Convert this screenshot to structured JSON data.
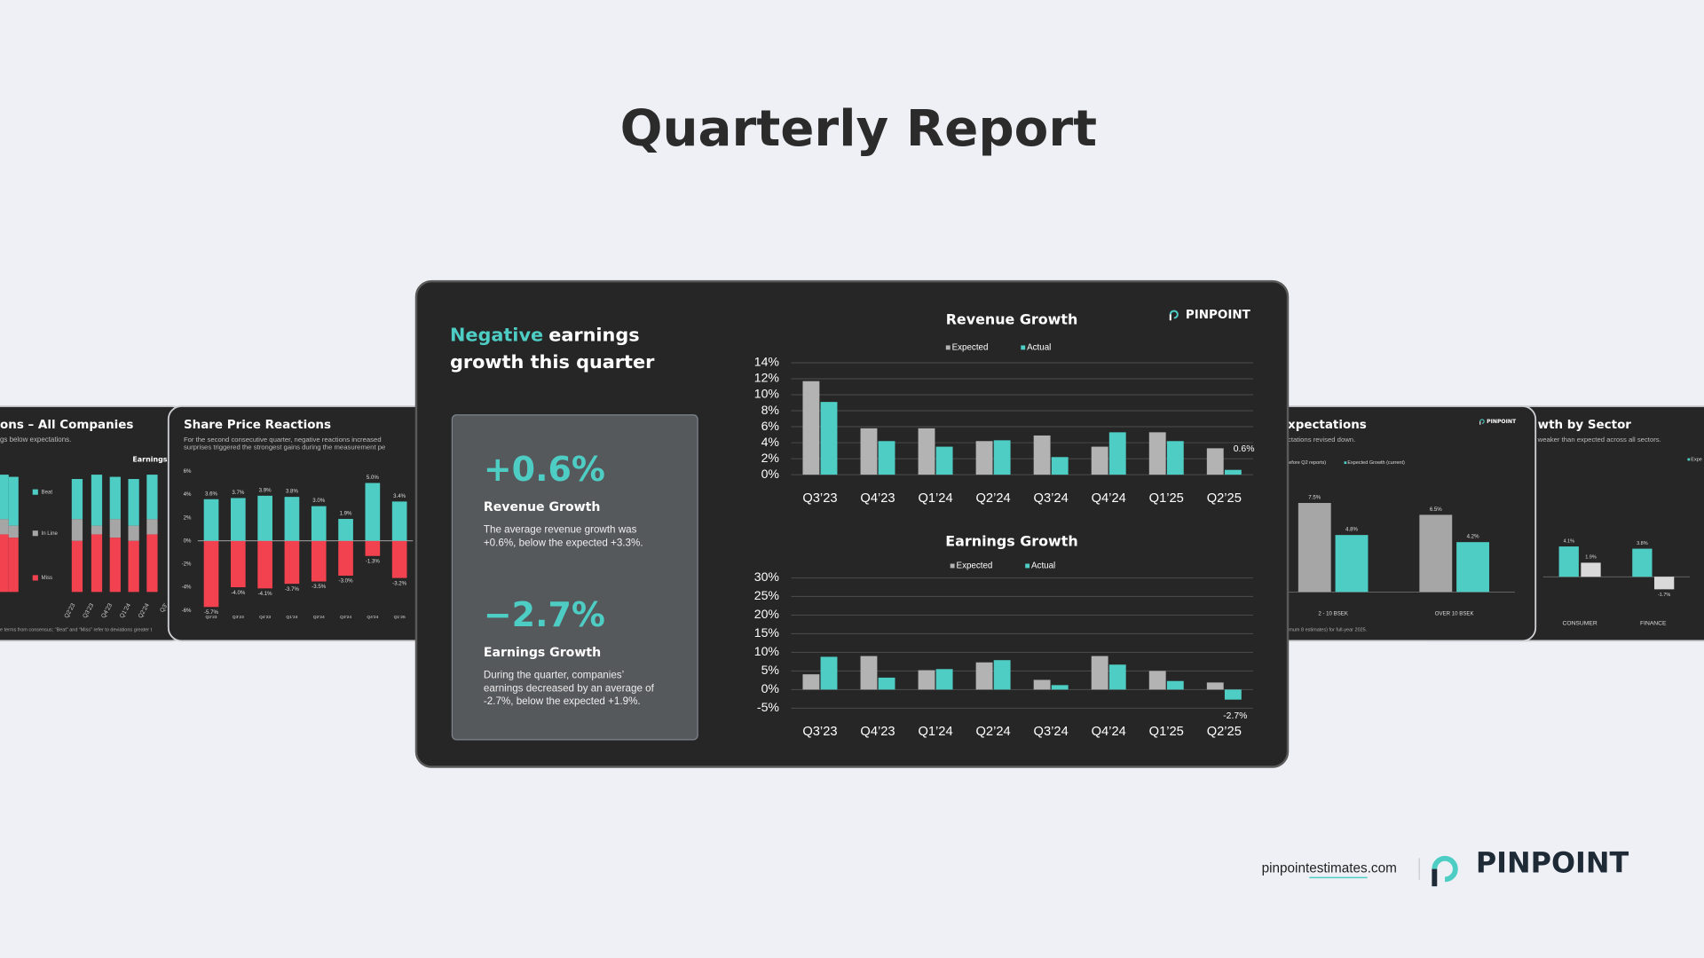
{
  "header": {
    "title": "Quarterly Report"
  },
  "brand": "PINPOINT",
  "main_slide": {
    "headline": [
      "Negative",
      "earnings",
      "growth this quarter"
    ],
    "stats": [
      {
        "value": "+0.6%",
        "label": "Revenue Growth",
        "text": [
          "The average revenue growth was",
          "+0.6%, below the expected +3.3%."
        ]
      },
      {
        "value": "−2.7%",
        "label": "Earnings Growth",
        "text": [
          "During the quarter, companies’",
          "earnings decreased by an average of",
          "-2.7%, below the expected +1.9%."
        ]
      }
    ]
  },
  "left_slide": {
    "title": "ons – All Companies",
    "subtitle": "gs below expectations.",
    "chart_label": "Earnings",
    "legend": [
      "Beat",
      "In Line",
      "Miss"
    ],
    "categories": [
      "Q2’23",
      "Q3’23",
      "Q4’23",
      "Q1’24",
      "Q2’24",
      "Q3’"
    ],
    "footnote": "e terms from consensus; “Beat” and “Miss” refer to deviations greater t"
  },
  "chart_data": [
    {
      "type": "bar",
      "title": "Revenue Growth",
      "categories": [
        "Q3’23",
        "Q4’23",
        "Q1’24",
        "Q2’24",
        "Q3’24",
        "Q4’24",
        "Q1’25",
        "Q2’25"
      ],
      "series": [
        {
          "name": "Expected",
          "color": "#b3b3b3",
          "values": [
            11.7,
            5.8,
            5.8,
            4.2,
            4.9,
            3.5,
            5.3,
            3.3
          ]
        },
        {
          "name": "Actual",
          "color": "#4ecdc4",
          "values": [
            9.1,
            4.2,
            3.5,
            4.3,
            2.2,
            5.3,
            4.2,
            0.6
          ],
          "value_labels": [
            null,
            null,
            null,
            null,
            null,
            null,
            null,
            "0.6%"
          ]
        }
      ],
      "ylim": [
        0,
        14
      ],
      "yticks": [
        {
          "value": 0,
          "label": "0%"
        },
        {
          "value": 2,
          "label": "2%"
        },
        {
          "value": 4,
          "label": "4%"
        },
        {
          "value": 6,
          "label": "6%"
        },
        {
          "value": 8,
          "label": "8%"
        },
        {
          "value": 10,
          "label": "10%"
        },
        {
          "value": 12,
          "label": "12%"
        },
        {
          "value": 14,
          "label": "14%"
        }
      ],
      "grid": true
    },
    {
      "type": "bar",
      "title": "Earnings Growth",
      "categories": [
        "Q3’23",
        "Q4’23",
        "Q1’24",
        "Q2’24",
        "Q3’24",
        "Q4’24",
        "Q1’25",
        "Q2’25"
      ],
      "series": [
        {
          "name": "Expected",
          "color": "#b3b3b3",
          "values": [
            4.1,
            9.0,
            5.2,
            7.3,
            2.6,
            9.0,
            5.0,
            1.9
          ]
        },
        {
          "name": "Actual",
          "color": "#4ecdc4",
          "values": [
            8.8,
            3.2,
            5.5,
            7.9,
            1.2,
            6.7,
            2.3,
            -2.7
          ],
          "value_labels": [
            null,
            null,
            null,
            null,
            null,
            null,
            null,
            "-2.7%"
          ]
        }
      ],
      "ylim": [
        -5,
        30
      ],
      "yticks": [
        {
          "value": -5,
          "label": "-5%"
        },
        {
          "value": 0,
          "label": "0%"
        },
        {
          "value": 5,
          "label": "5%"
        },
        {
          "value": 10,
          "label": "10%"
        },
        {
          "value": 15,
          "label": "15%"
        },
        {
          "value": 20,
          "label": "20%"
        },
        {
          "value": 25,
          "label": "25%"
        },
        {
          "value": 30,
          "label": "30%"
        }
      ],
      "grid": true
    },
    {
      "type": "bar",
      "stacked": true,
      "title": "Share Price Reactions",
      "subtitle": [
        "For the second consecutive quarter, negative reactions increased",
        "surprises triggered the strongest gains during the measurement pe"
      ],
      "categories": [
        "Q2’23",
        "Q3’23",
        "Q4’23",
        "Q1’24",
        "Q2’24",
        "Q3’24",
        "Q4’24",
        "Q1’25"
      ],
      "series": [
        {
          "color": "#4ecdc4",
          "values": [
            3.6,
            3.7,
            3.9,
            3.8,
            3.0,
            1.9,
            5.0,
            3.4
          ],
          "value_labels": [
            "3.6%",
            "3.7%",
            "3.9%",
            "3.8%",
            "3.0%",
            "1.9%",
            "5.0%",
            "3.4%"
          ]
        },
        {
          "color": "#f2414f",
          "values": [
            -5.7,
            -4.0,
            -4.1,
            -3.7,
            -3.5,
            -3.0,
            -1.3,
            -3.2
          ],
          "value_labels": [
            "-5.7%",
            "-4.0%",
            "-4.1%",
            "-3.7%",
            "-3.5%",
            "-3.0%",
            "-1.3%",
            "-3.2%"
          ]
        }
      ],
      "ylim": [
        -6,
        6
      ],
      "yticks": [
        {
          "value": -6,
          "label": "-6%"
        },
        {
          "value": -4,
          "label": "-4%"
        },
        {
          "value": -2,
          "label": "-2%"
        },
        {
          "value": 0,
          "label": "0%"
        },
        {
          "value": 2,
          "label": "2%"
        },
        {
          "value": 4,
          "label": "4%"
        },
        {
          "value": 6,
          "label": "6%"
        }
      ],
      "grid": false
    },
    {
      "type": "bar",
      "title": "xpectations",
      "subtitle": [
        "ctations revised down."
      ],
      "footnote": "imum 8 estimates) for full-year 2025.",
      "categories": [
        "2 - 10 BSEK",
        "OVER 10 BSEK"
      ],
      "series": [
        {
          "name": "efore Q2 reports)",
          "color": "#a6a6a6",
          "values": [
            7.5,
            6.5
          ],
          "value_labels": [
            "7.5%",
            "6.5%"
          ]
        },
        {
          "name": "Expected Growth (current)",
          "color": "#4ecdc4",
          "values": [
            4.8,
            4.2
          ],
          "value_labels": [
            "4.8%",
            "4.2%"
          ]
        }
      ],
      "ylim": [
        0,
        8
      ],
      "grid": false
    },
    {
      "type": "bar",
      "title": "wth by Sector",
      "subtitle": [
        "weaker than expected across all sectors."
      ],
      "categories": [
        "CONSUMER",
        "FINANCE"
      ],
      "series": [
        {
          "name": "Expe",
          "color": "#4ecdc4",
          "values": [
            4.1,
            3.8
          ],
          "value_labels": [
            "4.1%",
            "3.8%"
          ]
        },
        {
          "color": "#d9d9d9",
          "values": [
            1.9,
            -1.7
          ],
          "value_labels": [
            "1.9%",
            "-1.7%"
          ]
        }
      ],
      "ylim": [
        -3,
        5
      ],
      "grid": false
    }
  ],
  "footer": {
    "url": [
      "pinpoint",
      "estimates",
      ".com"
    ]
  }
}
